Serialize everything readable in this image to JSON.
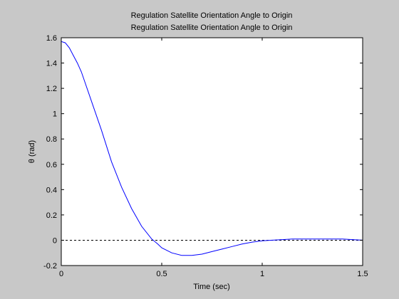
{
  "chart_data": {
    "type": "line",
    "title_lines": [
      "Regulation Satellite Orientation Angle to Origin",
      "Regulation Satellite Orientation Angle to Origin"
    ],
    "xlabel": "Time (sec)",
    "ylabel": "θ (rad)",
    "xlim": [
      0,
      1.5
    ],
    "ylim": [
      -0.2,
      1.6
    ],
    "xticks": [
      0,
      0.5,
      1,
      1.5
    ],
    "xtick_labels": [
      "0",
      "0.5",
      "1",
      "1.5"
    ],
    "yticks": [
      -0.2,
      0,
      0.2,
      0.4,
      0.6,
      0.8,
      1,
      1.2,
      1.4,
      1.6
    ],
    "ytick_labels": [
      "-0.2",
      "0",
      "0.2",
      "0.4",
      "0.6",
      "0.8",
      "1",
      "1.2",
      "1.4",
      "1.6"
    ],
    "grid": false,
    "series": [
      {
        "color": "#0000ff",
        "x": [
          0,
          0.02,
          0.04,
          0.06,
          0.08,
          0.1,
          0.15,
          0.2,
          0.25,
          0.3,
          0.35,
          0.4,
          0.45,
          0.48,
          0.5,
          0.55,
          0.6,
          0.65,
          0.7,
          0.75,
          0.8,
          0.85,
          0.9,
          0.95,
          1.0,
          1.05,
          1.1,
          1.15,
          1.2,
          1.25,
          1.3,
          1.35,
          1.4,
          1.45,
          1.5
        ],
        "y": [
          1.57,
          1.56,
          1.52,
          1.46,
          1.4,
          1.33,
          1.1,
          0.87,
          0.62,
          0.42,
          0.25,
          0.11,
          0.01,
          -0.03,
          -0.06,
          -0.1,
          -0.12,
          -0.12,
          -0.11,
          -0.09,
          -0.07,
          -0.05,
          -0.03,
          -0.015,
          -0.005,
          0.0,
          0.005,
          0.01,
          0.01,
          0.01,
          0.01,
          0.01,
          0.01,
          0.005,
          0.0
        ]
      }
    ],
    "reference_lines": [
      {
        "y": 0,
        "style": "dashed",
        "color": "#000000"
      }
    ]
  }
}
